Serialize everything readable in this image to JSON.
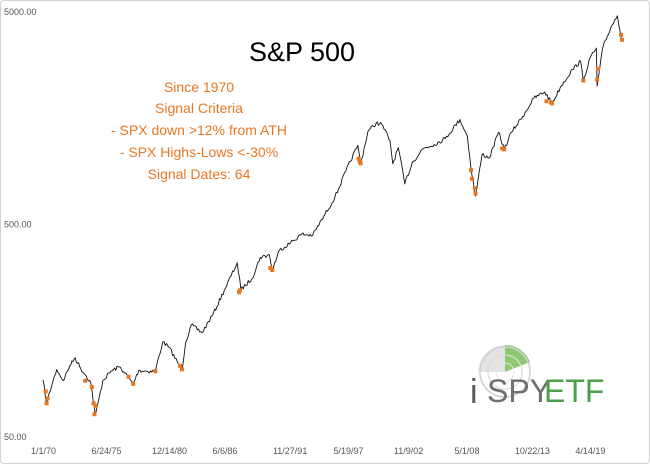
{
  "chart_data": {
    "type": "line",
    "title": "S&P 500",
    "xlabel": "",
    "ylabel": "",
    "y_scale": "log",
    "ylim": [
      50,
      5000
    ],
    "y_ticks": [
      "5000.00",
      "500.00",
      "50.00"
    ],
    "x_range": [
      "1970-01-01",
      "2022-06-01"
    ],
    "x_ticks": [
      "1/1/70",
      "6/24/75",
      "12/14/80",
      "6/6/86",
      "11/27/91",
      "5/19/97",
      "11/9/02",
      "5/1/08",
      "10/22/13",
      "4/14/19"
    ],
    "grid": false,
    "annotations": [
      "Since 1970",
      "Signal Criteria",
      "- SPX down >12% from ATH",
      "- SPX Highs-Lows <-30%",
      "Signal Dates: 64"
    ],
    "series": [
      {
        "x": [
          "1970-01",
          "1970-05",
          "1970-12",
          "1971-04",
          "1971-11",
          "1972-06",
          "1972-12",
          "1973-06",
          "1973-12",
          "1974-05",
          "1974-10",
          "1975-06",
          "1976-03",
          "1976-12",
          "1977-06",
          "1978-03",
          "1978-09",
          "1979-06",
          "1980-03",
          "1980-11",
          "1981-06",
          "1982-08",
          "1982-12",
          "1983-06",
          "1984-06",
          "1985-06",
          "1986-06",
          "1987-08",
          "1987-12",
          "1988-12",
          "1989-09",
          "1990-07",
          "1990-10",
          "1991-06",
          "1992-06",
          "1993-06",
          "1994-06",
          "1995-06",
          "1996-06",
          "1997-06",
          "1998-07",
          "1998-10",
          "1999-06",
          "2000-03",
          "2000-09",
          "2001-06",
          "2001-09",
          "2002-03",
          "2002-10",
          "2003-06",
          "2004-06",
          "2005-06",
          "2006-06",
          "2007-10",
          "2008-06",
          "2008-11",
          "2009-03",
          "2009-10",
          "2010-06",
          "2011-04",
          "2011-10",
          "2012-06",
          "2013-06",
          "2014-06",
          "2015-06",
          "2016-02",
          "2016-12",
          "2017-12",
          "2018-09",
          "2018-12",
          "2019-06",
          "2020-02",
          "2020-03",
          "2020-09",
          "2021-06",
          "2022-01",
          "2022-06"
        ],
        "y": [
          93,
          72,
          92,
          104,
          92,
          108,
          118,
          105,
          97,
          90,
          63,
          92,
          102,
          107,
          100,
          89,
          103,
          102,
          102,
          140,
          132,
          103,
          140,
          168,
          155,
          190,
          245,
          330,
          247,
          278,
          350,
          360,
          305,
          380,
          410,
          450,
          445,
          545,
          670,
          890,
          1180,
          960,
          1370,
          1500,
          1480,
          1240,
          965,
          1150,
          776,
          975,
          1140,
          1190,
          1270,
          1560,
          1300,
          850,
          680,
          1070,
          1030,
          1360,
          1130,
          1360,
          1610,
          1960,
          2100,
          1860,
          2250,
          2680,
          2930,
          2350,
          2950,
          3380,
          2240,
          3380,
          4250,
          4800,
          3660
        ]
      }
    ],
    "signals": {
      "color": "#E87722",
      "x": [
        "1970-04",
        "1970-05",
        "1970-06",
        "1973-11",
        "1974-06",
        "1974-08",
        "1974-09",
        "1974-10",
        "1977-10",
        "1978-03",
        "1980-03",
        "1982-06",
        "1982-08",
        "1987-10",
        "1987-11",
        "1990-08",
        "1990-10",
        "1998-08",
        "1998-09",
        "1998-10",
        "2008-10",
        "2008-11",
        "2009-02",
        "2009-03",
        "2011-08",
        "2011-10",
        "2015-08",
        "2016-01",
        "2016-02",
        "2018-12",
        "2020-03",
        "2020-04",
        "2022-05",
        "2022-06"
      ],
      "y": [
        82,
        72,
        76,
        92,
        86,
        72,
        64,
        70,
        96,
        89,
        102,
        108,
        104,
        240,
        245,
        312,
        305,
        1020,
        990,
        970,
        900,
        820,
        740,
        700,
        1140,
        1130,
        1900,
        1880,
        1860,
        2380,
        2400,
        2700,
        3900,
        3700
      ]
    }
  },
  "logo": {
    "prefix": "i",
    "brand": "SPY",
    "suffix": "ETF"
  }
}
